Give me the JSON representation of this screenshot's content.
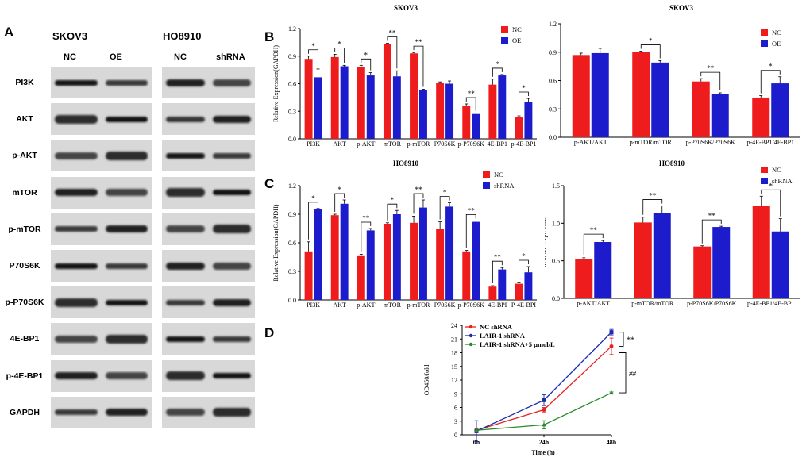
{
  "panels": {
    "a": "A",
    "b": "B",
    "c": "C",
    "d": "D"
  },
  "western_blot": {
    "left": {
      "cell_line": "SKOV3",
      "lanes": [
        "NC",
        "OE"
      ]
    },
    "right": {
      "cell_line": "HO8910",
      "lanes": [
        "NC",
        "shRNA"
      ]
    },
    "proteins": [
      "PI3K",
      "AKT",
      "p-AKT",
      "mTOR",
      "p-mTOR",
      "P70S6K",
      "p-P70S6K",
      "4E-BP1",
      "p-4E-BP1",
      "GAPDH"
    ]
  },
  "colors": {
    "nc": "#ee1c1c",
    "treat": "#1c1ccc",
    "line_nc": "#e82020",
    "line_lair": "#1c2aa8",
    "line_inhib": "#2a8a2a"
  },
  "chart_data": [
    {
      "id": "B-left",
      "type": "bar",
      "title": "SKOV3",
      "ylabel": "Relative Expression(GAPDH)",
      "xlabel": "",
      "ylim": [
        0,
        1.2
      ],
      "yticks": [
        "0.0",
        "0.3",
        "0.6",
        "0.9",
        "1.2"
      ],
      "legend": "top-right",
      "categories": [
        "PI3K",
        "AKT",
        "p-AKT",
        "mTOR",
        "p-mTOR",
        "P70S6K",
        "p-P70S6K",
        "4E-BP1",
        "p-4E-BP1"
      ],
      "series": [
        {
          "name": "NC",
          "values": [
            0.87,
            0.89,
            0.78,
            1.03,
            0.93,
            0.61,
            0.36,
            0.59,
            0.24
          ],
          "errors": [
            0.03,
            0.03,
            0.02,
            0.01,
            0.01,
            0.01,
            0.02,
            0.06,
            0.01
          ]
        },
        {
          "name": "OE",
          "values": [
            0.67,
            0.79,
            0.69,
            0.68,
            0.53,
            0.6,
            0.27,
            0.69,
            0.4
          ],
          "errors": [
            0.09,
            0.01,
            0.03,
            0.06,
            0.01,
            0.03,
            0.01,
            0.01,
            0.04
          ]
        }
      ],
      "significance": [
        "*",
        "*",
        "*",
        "**",
        "**",
        "",
        "**",
        "*",
        "*"
      ]
    },
    {
      "id": "B-right",
      "type": "bar",
      "title": "SKOV3",
      "ylabel": "Relative Expression",
      "xlabel": "",
      "ylim": [
        0,
        1.2
      ],
      "yticks": [
        "0.0",
        "0.3",
        "0.6",
        "0.9",
        "1.2"
      ],
      "legend": "top-right",
      "categories": [
        "p-AKT/AKT",
        "p-mTOR/mTOR",
        "p-P70S6K/P70S6K",
        "p-4E-BP1/4E-BP1"
      ],
      "series": [
        {
          "name": "NC",
          "values": [
            0.87,
            0.9,
            0.59,
            0.42
          ],
          "errors": [
            0.02,
            0.01,
            0.03,
            0.02
          ]
        },
        {
          "name": "OE",
          "values": [
            0.89,
            0.79,
            0.46,
            0.57
          ],
          "errors": [
            0.05,
            0.02,
            0.01,
            0.07
          ]
        }
      ],
      "significance": [
        "",
        "*",
        "**",
        "*"
      ]
    },
    {
      "id": "C-left",
      "type": "bar",
      "title": "HO8910",
      "ylabel": "Relative Expression(GAPDH)",
      "xlabel": "",
      "ylim": [
        0,
        1.2
      ],
      "yticks": [
        "0.0",
        "0.3",
        "0.6",
        "0.9",
        "1.2"
      ],
      "legend": "top-right",
      "categories": [
        "PI3K",
        "AKT",
        "p-AKT",
        "mTOR",
        "p-mTOR",
        "P70S6K",
        "p-P70S6K",
        "4E-BPI",
        "P-4E-BPI"
      ],
      "series": [
        {
          "name": "NC",
          "values": [
            0.51,
            0.89,
            0.46,
            0.8,
            0.81,
            0.75,
            0.51,
            0.14,
            0.17
          ],
          "errors": [
            0.1,
            0.01,
            0.02,
            0.01,
            0.07,
            0.07,
            0.01,
            0.01,
            0.01
          ]
        },
        {
          "name": "shRNA",
          "values": [
            0.95,
            1.01,
            0.73,
            0.9,
            0.97,
            0.98,
            0.82,
            0.32,
            0.29
          ],
          "errors": [
            0.01,
            0.04,
            0.02,
            0.04,
            0.08,
            0.04,
            0.01,
            0.02,
            0.06
          ]
        }
      ],
      "significance": [
        "*",
        "*",
        "**",
        "*",
        "**",
        "*",
        "**",
        "**",
        "*"
      ]
    },
    {
      "id": "C-right",
      "type": "bar",
      "title": "HO8910",
      "ylabel": "Relative Expression",
      "xlabel": "",
      "ylim": [
        0,
        1.5
      ],
      "yticks": [
        "0.0",
        "0.5",
        "1.0",
        "1.5"
      ],
      "legend": "top-right",
      "categories": [
        "p-AKT/AKT",
        "p-mTOR/mTOR",
        "p-P70S6K/P70S6K",
        "p-4E-BP1/4E-BP1"
      ],
      "series": [
        {
          "name": "NC",
          "values": [
            0.52,
            1.01,
            0.69,
            1.23
          ],
          "errors": [
            0.02,
            0.07,
            0.01,
            0.13
          ]
        },
        {
          "name": "shRNA",
          "values": [
            0.75,
            1.14,
            0.95,
            0.89
          ],
          "errors": [
            0.02,
            0.09,
            0.01,
            0.17
          ]
        }
      ],
      "significance": [
        "**",
        "**",
        "**",
        "*"
      ]
    },
    {
      "id": "D",
      "type": "line",
      "title": "",
      "xlabel": "Time (h)",
      "ylabel": "OD450/fold",
      "categories": [
        "0h",
        "24h",
        "48h"
      ],
      "ylim": [
        0,
        24
      ],
      "yticks": [
        "0",
        "3",
        "6",
        "9",
        "12",
        "15",
        "18",
        "21",
        "24"
      ],
      "legend": "top-left",
      "series": [
        {
          "name": "NC shRNA",
          "values": [
            1.0,
            5.5,
            19.4
          ],
          "errors": [
            0.5,
            0.5,
            1.8
          ]
        },
        {
          "name": "LAIR-1 shRNA",
          "values": [
            0.8,
            7.6,
            22.5
          ],
          "errors": [
            2.3,
            1.2,
            0.6
          ]
        },
        {
          "name": "LAIR-1 shRNA+5 μmol/L",
          "values": [
            1.0,
            2.2,
            9.2
          ],
          "errors": [
            0.4,
            0.9,
            0.2
          ]
        }
      ],
      "significance": [
        "**",
        "##"
      ]
    }
  ]
}
